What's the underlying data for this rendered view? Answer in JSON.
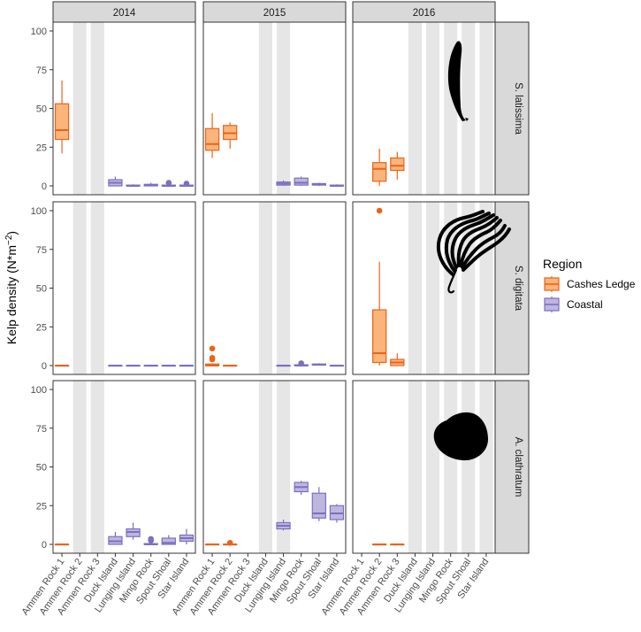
{
  "chart_data": {
    "type": "boxplot",
    "ylabel": "Kelp density (N*m⁻²)",
    "ylabel_main": "Kelp density (N*m",
    "ylabel_sup": "−2",
    "ylabel_close": ")",
    "ylim": [
      0,
      100
    ],
    "y_ticks": [
      0,
      25,
      50,
      75,
      100
    ],
    "sites": [
      "Ammen Rock 1",
      "Ammen Rock 2",
      "Ammen Rock 3",
      "Duck Island",
      "Lunging Island",
      "Mingo Rock",
      "Spout Shoal",
      "Star Island"
    ],
    "years": [
      "2014",
      "2015",
      "2016"
    ],
    "species": [
      "S. latissima",
      "S. digitata",
      "A. clathratum"
    ],
    "legend": {
      "title": "Region",
      "items": [
        {
          "label": "Cashes Ledge",
          "fill": "#fbb479",
          "stroke": "#e8641c"
        },
        {
          "label": "Coastal",
          "fill": "#bdb7e0",
          "stroke": "#7d6fbf"
        }
      ]
    },
    "panels": [
      {
        "year": "2014",
        "species": "S. latissima",
        "gray_sites": [
          1,
          2
        ],
        "boxes": [
          {
            "site": 0,
            "region": "Cashes Ledge",
            "min": 21,
            "q1": 30,
            "median": 36,
            "q3": 53,
            "max": 68,
            "outliers": []
          },
          {
            "site": 3,
            "region": "Coastal",
            "min": 0,
            "q1": 0,
            "median": 2,
            "q3": 4,
            "max": 6,
            "outliers": []
          },
          {
            "site": 4,
            "region": "Coastal",
            "min": 0,
            "q1": 0,
            "median": 0,
            "q3": 0.5,
            "max": 1,
            "outliers": []
          },
          {
            "site": 5,
            "region": "Coastal",
            "min": 0,
            "q1": 0,
            "median": 0.5,
            "q3": 1,
            "max": 2,
            "outliers": []
          },
          {
            "site": 6,
            "region": "Coastal",
            "min": 0,
            "q1": 0,
            "median": 0,
            "q3": 0.5,
            "max": 1,
            "outliers": [
              2
            ]
          },
          {
            "site": 7,
            "region": "Coastal",
            "min": 0,
            "q1": 0,
            "median": 0,
            "q3": 0.5,
            "max": 1,
            "outliers": [
              1.5
            ]
          }
        ]
      },
      {
        "year": "2015",
        "species": "S. latissima",
        "gray_sites": [
          3,
          4
        ],
        "boxes": [
          {
            "site": 0,
            "region": "Cashes Ledge",
            "min": 18,
            "q1": 23,
            "median": 27,
            "q3": 37,
            "max": 47,
            "outliers": []
          },
          {
            "site": 1,
            "region": "Cashes Ledge",
            "min": 24,
            "q1": 30,
            "median": 34,
            "q3": 39,
            "max": 41,
            "outliers": []
          },
          {
            "site": 4,
            "region": "Coastal",
            "min": 0,
            "q1": 0.5,
            "median": 1.5,
            "q3": 2.5,
            "max": 3.5,
            "outliers": []
          },
          {
            "site": 5,
            "region": "Coastal",
            "min": 0,
            "q1": 0.5,
            "median": 2,
            "q3": 5,
            "max": 6,
            "outliers": []
          },
          {
            "site": 6,
            "region": "Coastal",
            "min": 0,
            "q1": 0.5,
            "median": 1,
            "q3": 1.5,
            "max": 2,
            "outliers": []
          },
          {
            "site": 7,
            "region": "Coastal",
            "min": 0,
            "q1": 0,
            "median": 0,
            "q3": 0.5,
            "max": 1,
            "outliers": []
          }
        ]
      },
      {
        "year": "2016",
        "species": "S. latissima",
        "gray_sites": [
          3,
          4,
          5,
          6,
          7
        ],
        "boxes": [
          {
            "site": 1,
            "region": "Cashes Ledge",
            "min": 0,
            "q1": 3,
            "median": 11,
            "q3": 15,
            "max": 24,
            "outliers": []
          },
          {
            "site": 2,
            "region": "Cashes Ledge",
            "min": 4,
            "q1": 10,
            "median": 13,
            "q3": 18,
            "max": 22,
            "outliers": []
          }
        ]
      },
      {
        "year": "2014",
        "species": "S. digitata",
        "gray_sites": [
          1,
          2
        ],
        "boxes": [
          {
            "site": 0,
            "region": "Cashes Ledge",
            "min": 0,
            "q1": 0,
            "median": 0,
            "q3": 0,
            "max": 0,
            "outliers": []
          },
          {
            "site": 3,
            "region": "Coastal",
            "min": 0,
            "q1": 0,
            "median": 0,
            "q3": 0,
            "max": 0,
            "outliers": []
          },
          {
            "site": 4,
            "region": "Coastal",
            "min": 0,
            "q1": 0,
            "median": 0,
            "q3": 0,
            "max": 0,
            "outliers": []
          },
          {
            "site": 5,
            "region": "Coastal",
            "min": 0,
            "q1": 0,
            "median": 0,
            "q3": 0,
            "max": 0,
            "outliers": []
          },
          {
            "site": 6,
            "region": "Coastal",
            "min": 0,
            "q1": 0,
            "median": 0,
            "q3": 0,
            "max": 0,
            "outliers": []
          },
          {
            "site": 7,
            "region": "Coastal",
            "min": 0,
            "q1": 0,
            "median": 0,
            "q3": 0,
            "max": 0,
            "outliers": []
          }
        ]
      },
      {
        "year": "2015",
        "species": "S. digitata",
        "gray_sites": [
          3,
          4
        ],
        "boxes": [
          {
            "site": 0,
            "region": "Cashes Ledge",
            "min": 0,
            "q1": 0,
            "median": 0,
            "q3": 1,
            "max": 1.5,
            "outliers": [
              4,
              5,
              11
            ]
          },
          {
            "site": 1,
            "region": "Cashes Ledge",
            "min": 0,
            "q1": 0,
            "median": 0,
            "q3": 0,
            "max": 0,
            "outliers": []
          },
          {
            "site": 4,
            "region": "Coastal",
            "min": 0,
            "q1": 0,
            "median": 0,
            "q3": 0,
            "max": 0,
            "outliers": []
          },
          {
            "site": 5,
            "region": "Coastal",
            "min": 0,
            "q1": 0,
            "median": 0,
            "q3": 0.5,
            "max": 1,
            "outliers": [
              1.5
            ]
          },
          {
            "site": 6,
            "region": "Coastal",
            "min": 0,
            "q1": 0.3,
            "median": 0.6,
            "q3": 1,
            "max": 1.5,
            "outliers": []
          },
          {
            "site": 7,
            "region": "Coastal",
            "min": 0,
            "q1": 0,
            "median": 0,
            "q3": 0,
            "max": 0,
            "outliers": []
          }
        ]
      },
      {
        "year": "2016",
        "species": "S. digitata",
        "gray_sites": [
          3,
          4,
          5,
          6,
          7
        ],
        "boxes": [
          {
            "site": 1,
            "region": "Cashes Ledge",
            "min": 0,
            "q1": 2,
            "median": 8,
            "q3": 36,
            "max": 67,
            "outliers": [
              100
            ]
          },
          {
            "site": 2,
            "region": "Cashes Ledge",
            "min": 0,
            "q1": 0,
            "median": 2,
            "q3": 4,
            "max": 8,
            "outliers": []
          }
        ]
      },
      {
        "year": "2014",
        "species": "A. clathratum",
        "gray_sites": [
          1,
          2
        ],
        "boxes": [
          {
            "site": 0,
            "region": "Cashes Ledge",
            "min": 0,
            "q1": 0,
            "median": 0,
            "q3": 0,
            "max": 0,
            "outliers": []
          },
          {
            "site": 3,
            "region": "Coastal",
            "min": 0,
            "q1": 0,
            "median": 2,
            "q3": 5,
            "max": 8,
            "outliers": []
          },
          {
            "site": 4,
            "region": "Coastal",
            "min": 3,
            "q1": 5,
            "median": 8,
            "q3": 10,
            "max": 14,
            "outliers": []
          },
          {
            "site": 5,
            "region": "Coastal",
            "min": 0,
            "q1": 0,
            "median": 0,
            "q3": 0.5,
            "max": 1,
            "outliers": [
              2.5,
              3.5
            ]
          },
          {
            "site": 6,
            "region": "Coastal",
            "min": 0,
            "q1": 0,
            "median": 1,
            "q3": 4,
            "max": 6,
            "outliers": []
          },
          {
            "site": 7,
            "region": "Coastal",
            "min": 0,
            "q1": 2,
            "median": 4,
            "q3": 6,
            "max": 10,
            "outliers": []
          }
        ]
      },
      {
        "year": "2015",
        "species": "A. clathratum",
        "gray_sites": [
          3,
          4
        ],
        "boxes": [
          {
            "site": 0,
            "region": "Cashes Ledge",
            "min": 0,
            "q1": 0,
            "median": 0,
            "q3": 0,
            "max": 0,
            "outliers": []
          },
          {
            "site": 1,
            "region": "Cashes Ledge",
            "min": 0,
            "q1": 0,
            "median": 0,
            "q3": 0,
            "max": 0,
            "outliers": [
              1
            ]
          },
          {
            "site": 4,
            "region": "Coastal",
            "min": 9,
            "q1": 10,
            "median": 12,
            "q3": 14,
            "max": 16,
            "outliers": []
          },
          {
            "site": 5,
            "region": "Coastal",
            "min": 32,
            "q1": 34,
            "median": 37,
            "q3": 40,
            "max": 41,
            "outliers": []
          },
          {
            "site": 6,
            "region": "Coastal",
            "min": 15,
            "q1": 17,
            "median": 20,
            "q3": 33,
            "max": 37,
            "outliers": []
          },
          {
            "site": 7,
            "region": "Coastal",
            "min": 14,
            "q1": 16,
            "median": 20,
            "q3": 25,
            "max": 26,
            "outliers": []
          }
        ]
      },
      {
        "year": "2016",
        "species": "A. clathratum",
        "gray_sites": [
          3,
          4,
          5,
          6,
          7
        ],
        "boxes": [
          {
            "site": 1,
            "region": "Cashes Ledge",
            "min": 0,
            "q1": 0,
            "median": 0,
            "q3": 0,
            "max": 0,
            "outliers": []
          },
          {
            "site": 2,
            "region": "Cashes Ledge",
            "min": 0,
            "q1": 0,
            "median": 0,
            "q3": 0,
            "max": 0,
            "outliers": []
          }
        ]
      }
    ]
  },
  "colors": {
    "strip_bg": "#d9d9d9",
    "strip_border": "#333333",
    "panel_border": "#333333",
    "gray_band": "#e6e6e6",
    "cashes_fill": "#fbb479",
    "cashes_stroke": "#e8641c",
    "coastal_fill": "#bdb7e0",
    "coastal_stroke": "#7d6fbf",
    "silhouette": "#000000"
  },
  "silhouettes": [
    "sugar-kelp-silhouette",
    "fingered-kelp-silhouette",
    "sieve-kelp-silhouette"
  ]
}
